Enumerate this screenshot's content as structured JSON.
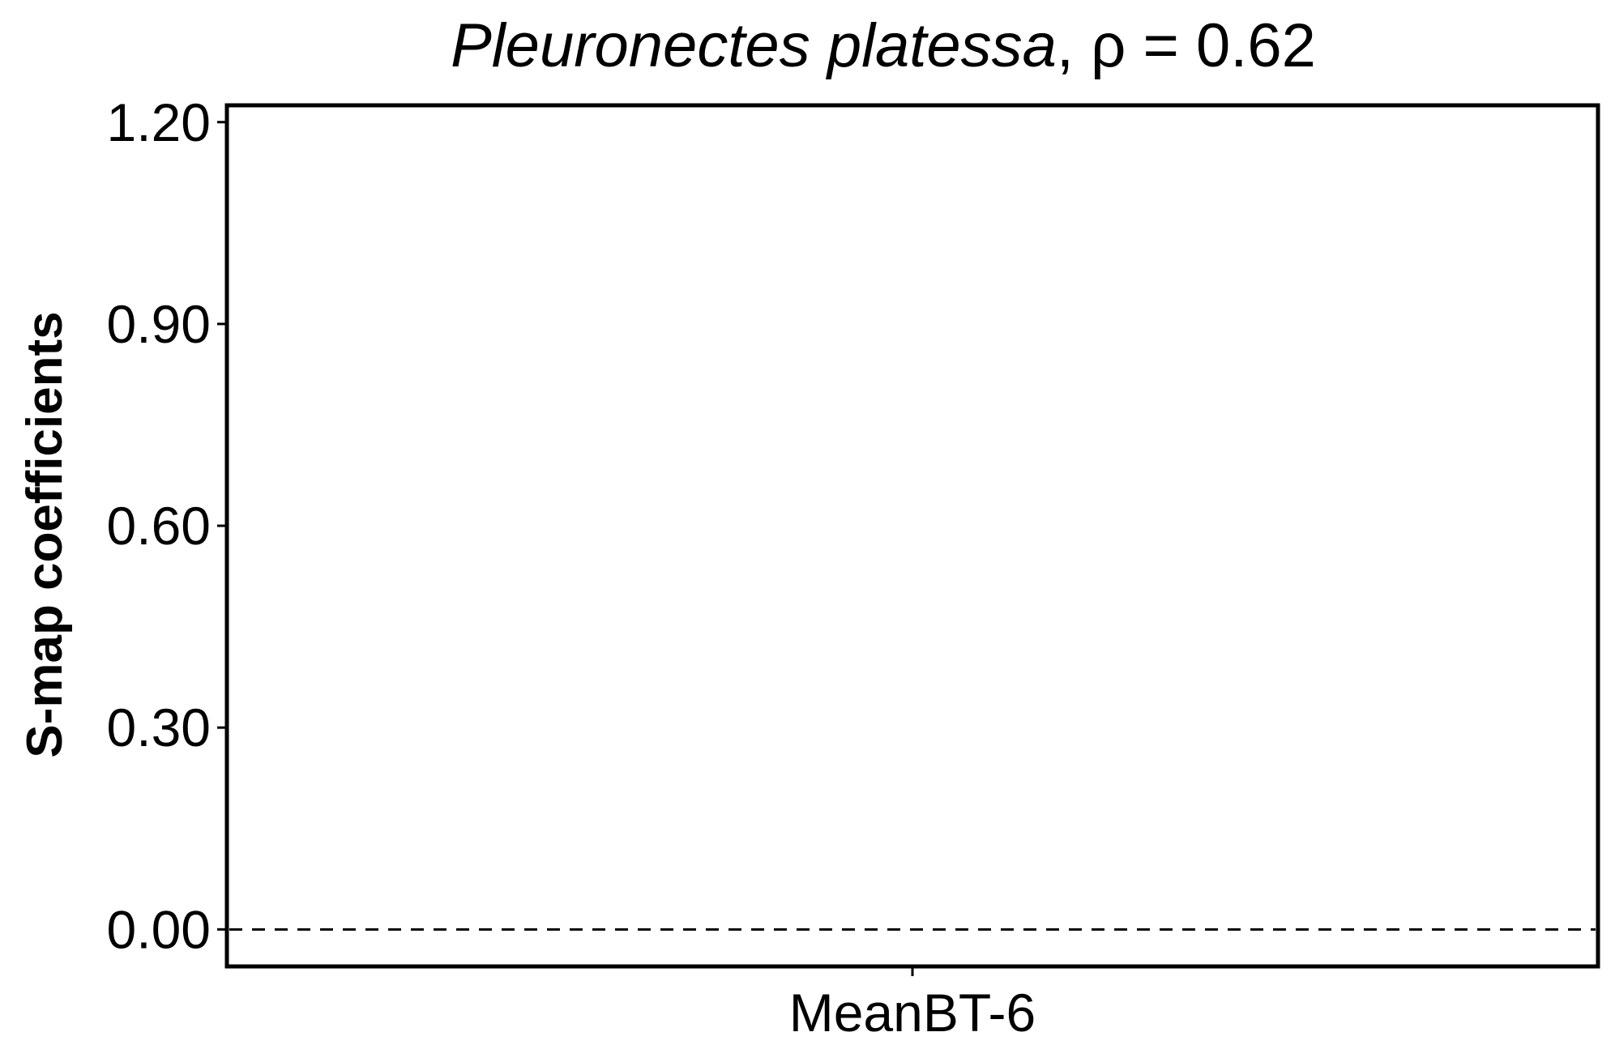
{
  "chart_data": {
    "type": "box",
    "title_species": "Pleuronectes platessa",
    "title_stat": ", ρ = 0.62",
    "xlabel": "",
    "ylabel": "S-map coefficients",
    "categories": [
      "MeanBT-6"
    ],
    "yticks": [
      0.0,
      0.3,
      0.6,
      0.9,
      1.2
    ],
    "ytick_labels": [
      "0.00",
      "0.30",
      "0.60",
      "0.90",
      "1.20"
    ],
    "ylim": [
      -0.055,
      1.225
    ],
    "reference_line": {
      "y": 0,
      "style": "dashed"
    },
    "grid": false,
    "legend": "none"
  }
}
